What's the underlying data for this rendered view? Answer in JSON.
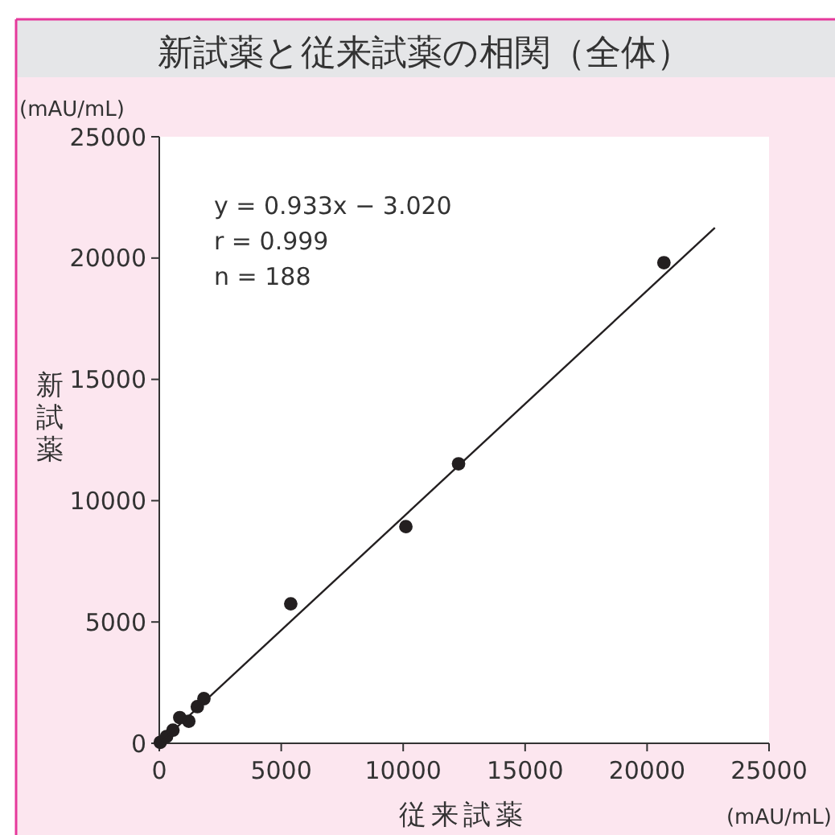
{
  "chart_data": {
    "type": "scatter",
    "title": "新試薬と従来試薬の相関（全体）",
    "xlabel": "従来試薬",
    "ylabel": "新試薬",
    "annotations": [
      "(mAU/mL)",
      "(mAU/mL)",
      "y = 0.933x − 3.020",
      "r = 0.999",
      "n = 188"
    ],
    "xlim": [
      0,
      25000
    ],
    "ylim": [
      0,
      25000
    ],
    "xticks": [
      0,
      5000,
      10000,
      15000,
      20000,
      25000
    ],
    "yticks": [
      0,
      5000,
      10000,
      15000,
      20000,
      25000
    ],
    "grid": false,
    "marker": "circle",
    "series": [
      {
        "color": "#231f20",
        "x": [
          40,
          300,
          560,
          840,
          1210,
          1560,
          1830,
          5390,
          10110,
          12270,
          20690
        ],
        "values": [
          40,
          280,
          540,
          1060,
          910,
          1510,
          1840,
          5750,
          8930,
          11520,
          19810
        ]
      },
      {
        "type": "line",
        "color": "#231f20",
        "marker": "none",
        "line_style": "solid",
        "x": [
          100,
          22780
        ],
        "values": [
          90,
          21250
        ]
      }
    ]
  }
}
